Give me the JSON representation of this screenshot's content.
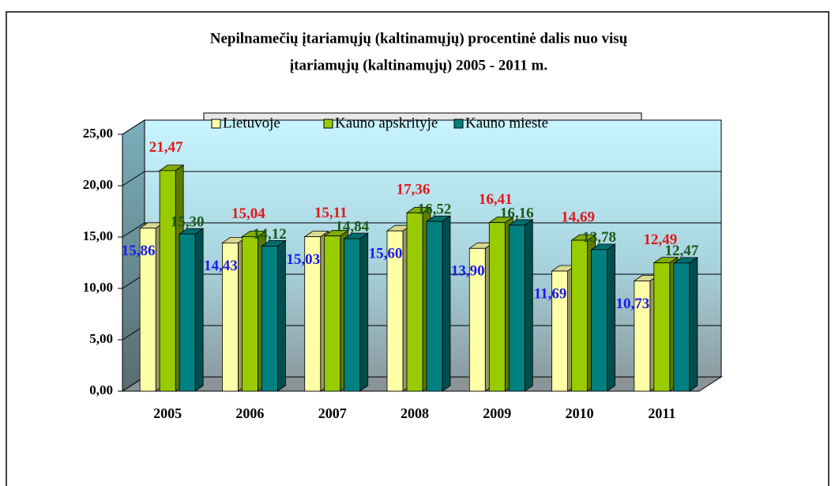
{
  "chart_data": {
    "type": "bar3d",
    "title": [
      "Nepilnamečių įtariamųjų (kaltinamųjų) procentinė dalis nuo visų",
      "įtariamųjų (kaltinamųjų) 2005 - 2011 m."
    ],
    "categories": [
      "2005",
      "2006",
      "2007",
      "2008",
      "2009",
      "2010",
      "2011"
    ],
    "series": [
      {
        "name": "Lietuvoje",
        "color": "#ffffa8",
        "label_color": "#1a1aee",
        "values": [
          15.86,
          14.43,
          15.03,
          15.6,
          13.9,
          11.69,
          10.73
        ],
        "value_labels": [
          "15,86",
          "14,43",
          "15,03",
          "15,60",
          "13,90",
          "11,69",
          "10,73"
        ]
      },
      {
        "name": "Kauno apskrityje",
        "color": "#99cc00",
        "label_color": "#e01818",
        "values": [
          21.47,
          15.04,
          15.11,
          17.36,
          16.41,
          14.69,
          12.49
        ],
        "value_labels": [
          "21,47",
          "15,04",
          "15,11",
          "17,36",
          "16,41",
          "14,69",
          "12,49"
        ]
      },
      {
        "name": "Kauno mieste",
        "color": "#008080",
        "label_color": "#1a5a1a",
        "values": [
          15.3,
          14.12,
          14.84,
          16.52,
          16.16,
          13.78,
          12.47
        ],
        "value_labels": [
          "15,30",
          "14,12",
          "14,84",
          "16,52",
          "16,16",
          "13,78",
          "12,47"
        ]
      }
    ],
    "ylim": [
      0,
      25
    ],
    "yticks": [
      {
        "value": 0,
        "label": "0,00"
      },
      {
        "value": 5,
        "label": "5,00"
      },
      {
        "value": 10,
        "label": "10,00"
      },
      {
        "value": 15,
        "label": "15,00"
      },
      {
        "value": 20,
        "label": "20,00"
      },
      {
        "value": 25,
        "label": "25,00"
      }
    ],
    "grid": true
  }
}
